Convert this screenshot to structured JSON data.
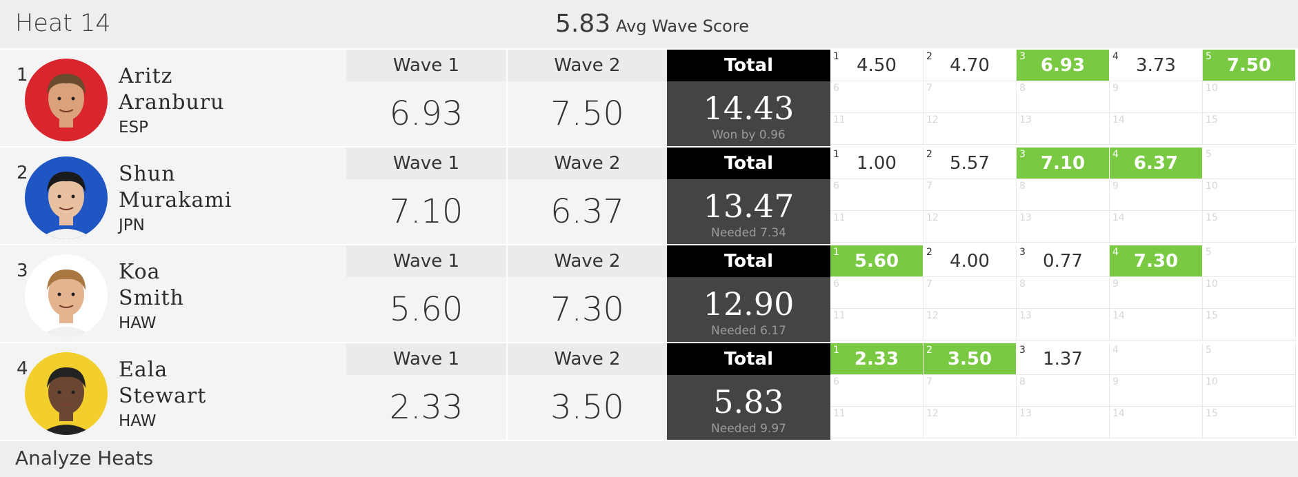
{
  "header": {
    "heat_title": "Heat 14",
    "avg_value": "5.83",
    "avg_label": "Avg Wave Score"
  },
  "footer": {
    "label": "Analyze Heats"
  },
  "colors": {
    "best_wave": "#7ac943",
    "total_head": "#000000",
    "total_body": "#444444"
  },
  "surfers": [
    {
      "rank": "1",
      "first": "Aritz",
      "last": "Aranburu",
      "country": "ESP",
      "avatar_color": "#d9262e",
      "wave1_label": "Wave 1",
      "wave1": "6.93",
      "wave2_label": "Wave 2",
      "wave2": "7.50",
      "total_label": "Total",
      "total": "14.43",
      "sub": "Won by 0.96",
      "waves": [
        {
          "n": "1",
          "s": "4.50",
          "best": false
        },
        {
          "n": "2",
          "s": "4.70",
          "best": false
        },
        {
          "n": "3",
          "s": "6.93",
          "best": true
        },
        {
          "n": "4",
          "s": "3.73",
          "best": false
        },
        {
          "n": "5",
          "s": "7.50",
          "best": true
        },
        {
          "n": "6",
          "s": "",
          "best": false
        },
        {
          "n": "7",
          "s": "",
          "best": false
        },
        {
          "n": "8",
          "s": "",
          "best": false
        },
        {
          "n": "9",
          "s": "",
          "best": false
        },
        {
          "n": "10",
          "s": "",
          "best": false
        },
        {
          "n": "11",
          "s": "",
          "best": false
        },
        {
          "n": "12",
          "s": "",
          "best": false
        },
        {
          "n": "13",
          "s": "",
          "best": false
        },
        {
          "n": "14",
          "s": "",
          "best": false
        },
        {
          "n": "15",
          "s": "",
          "best": false
        }
      ]
    },
    {
      "rank": "2",
      "first": "Shun",
      "last": "Murakami",
      "country": "JPN",
      "avatar_color": "#1f56c4",
      "wave1_label": "Wave 1",
      "wave1": "7.10",
      "wave2_label": "Wave 2",
      "wave2": "6.37",
      "total_label": "Total",
      "total": "13.47",
      "sub": "Needed 7.34",
      "waves": [
        {
          "n": "1",
          "s": "1.00",
          "best": false
        },
        {
          "n": "2",
          "s": "5.57",
          "best": false
        },
        {
          "n": "3",
          "s": "7.10",
          "best": true
        },
        {
          "n": "4",
          "s": "6.37",
          "best": true
        },
        {
          "n": "5",
          "s": "",
          "best": false
        },
        {
          "n": "6",
          "s": "",
          "best": false
        },
        {
          "n": "7",
          "s": "",
          "best": false
        },
        {
          "n": "8",
          "s": "",
          "best": false
        },
        {
          "n": "9",
          "s": "",
          "best": false
        },
        {
          "n": "10",
          "s": "",
          "best": false
        },
        {
          "n": "11",
          "s": "",
          "best": false
        },
        {
          "n": "12",
          "s": "",
          "best": false
        },
        {
          "n": "13",
          "s": "",
          "best": false
        },
        {
          "n": "14",
          "s": "",
          "best": false
        },
        {
          "n": "15",
          "s": "",
          "best": false
        }
      ]
    },
    {
      "rank": "3",
      "first": "Koa",
      "last": "Smith",
      "country": "HAW",
      "avatar_color": "#ffffff",
      "wave1_label": "Wave 1",
      "wave1": "5.60",
      "wave2_label": "Wave 2",
      "wave2": "7.30",
      "total_label": "Total",
      "total": "12.90",
      "sub": "Needed 6.17",
      "waves": [
        {
          "n": "1",
          "s": "5.60",
          "best": true
        },
        {
          "n": "2",
          "s": "4.00",
          "best": false
        },
        {
          "n": "3",
          "s": "0.77",
          "best": false
        },
        {
          "n": "4",
          "s": "7.30",
          "best": true
        },
        {
          "n": "5",
          "s": "",
          "best": false
        },
        {
          "n": "6",
          "s": "",
          "best": false
        },
        {
          "n": "7",
          "s": "",
          "best": false
        },
        {
          "n": "8",
          "s": "",
          "best": false
        },
        {
          "n": "9",
          "s": "",
          "best": false
        },
        {
          "n": "10",
          "s": "",
          "best": false
        },
        {
          "n": "11",
          "s": "",
          "best": false
        },
        {
          "n": "12",
          "s": "",
          "best": false
        },
        {
          "n": "13",
          "s": "",
          "best": false
        },
        {
          "n": "14",
          "s": "",
          "best": false
        },
        {
          "n": "15",
          "s": "",
          "best": false
        }
      ]
    },
    {
      "rank": "4",
      "first": "Eala",
      "last": "Stewart",
      "country": "HAW",
      "avatar_color": "#f2cf2c",
      "wave1_label": "Wave 1",
      "wave1": "2.33",
      "wave2_label": "Wave 2",
      "wave2": "3.50",
      "total_label": "Total",
      "total": "5.83",
      "sub": "Needed 9.97",
      "waves": [
        {
          "n": "1",
          "s": "2.33",
          "best": true
        },
        {
          "n": "2",
          "s": "3.50",
          "best": true
        },
        {
          "n": "3",
          "s": "1.37",
          "best": false
        },
        {
          "n": "4",
          "s": "",
          "best": false
        },
        {
          "n": "5",
          "s": "",
          "best": false
        },
        {
          "n": "6",
          "s": "",
          "best": false
        },
        {
          "n": "7",
          "s": "",
          "best": false
        },
        {
          "n": "8",
          "s": "",
          "best": false
        },
        {
          "n": "9",
          "s": "",
          "best": false
        },
        {
          "n": "10",
          "s": "",
          "best": false
        },
        {
          "n": "11",
          "s": "",
          "best": false
        },
        {
          "n": "12",
          "s": "",
          "best": false
        },
        {
          "n": "13",
          "s": "",
          "best": false
        },
        {
          "n": "14",
          "s": "",
          "best": false
        },
        {
          "n": "15",
          "s": "",
          "best": false
        }
      ]
    }
  ]
}
